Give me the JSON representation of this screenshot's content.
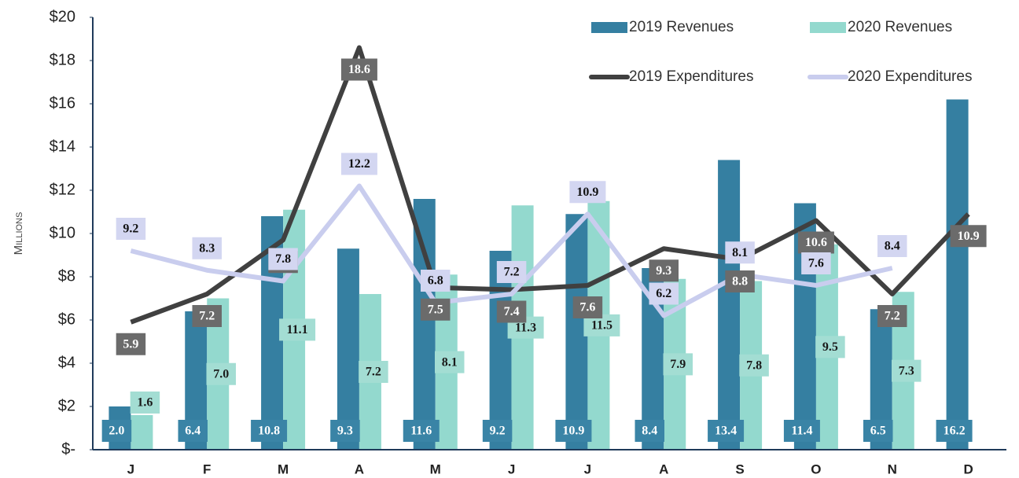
{
  "chart_data": {
    "type": "bar",
    "y_label": "Millions",
    "categories": [
      "J",
      "F",
      "M",
      "A",
      "M",
      "J",
      "J",
      "A",
      "S",
      "O",
      "N",
      "D"
    ],
    "series": [
      {
        "name": "2019 Revenues",
        "type": "bar",
        "color": "#357fa1",
        "label_bg": "#3a84a6",
        "label_color": "#ffffff",
        "values": [
          2.0,
          6.4,
          10.8,
          9.3,
          11.6,
          9.2,
          10.9,
          8.4,
          13.4,
          11.4,
          6.5,
          16.2
        ],
        "value_labels": [
          "2.0",
          "6.4",
          "10.8",
          "9.3",
          "11.6",
          "9.2",
          "10.9",
          "8.4",
          "13.4",
          "11.4",
          "6.5",
          "16.2"
        ]
      },
      {
        "name": "2020 Revenues",
        "type": "bar",
        "color": "#93d9ce",
        "label_bg": "#a3ddd3",
        "label_color": "#1a1a1a",
        "values": [
          1.6,
          7.0,
          11.1,
          7.2,
          8.1,
          11.3,
          11.5,
          7.9,
          7.8,
          9.5,
          7.3,
          null
        ],
        "value_labels": [
          "1.6",
          "7.0",
          "11.1",
          "7.2",
          "8.1",
          "11.3",
          "11.5",
          "7.9",
          "7.8",
          "9.5",
          "7.3",
          null
        ]
      },
      {
        "name": "2019 Expenditures",
        "type": "line",
        "color": "#404040",
        "label_bg": "#6b6b6b",
        "label_color": "#ffffff",
        "values": [
          5.9,
          7.2,
          9.7,
          18.6,
          7.5,
          7.4,
          7.6,
          9.3,
          8.8,
          10.6,
          7.2,
          10.9
        ],
        "value_labels": [
          "5.9",
          "7.2",
          "9.7",
          "18.6",
          "7.5",
          "7.4",
          "7.6",
          "9.3",
          "8.8",
          "10.6",
          "7.2",
          "10.9"
        ]
      },
      {
        "name": "2020 Expenditures",
        "type": "line",
        "color": "#c9cdee",
        "label_bg": "#d3d6f1",
        "label_color": "#111111",
        "values": [
          9.2,
          8.3,
          7.8,
          12.2,
          6.8,
          7.2,
          10.9,
          6.2,
          8.1,
          7.6,
          8.4,
          null
        ],
        "value_labels": [
          "9.2",
          "8.3",
          "7.8",
          "12.2",
          "6.8",
          "7.2",
          "10.9",
          "6.2",
          "8.1",
          "7.6",
          "8.4",
          null
        ]
      }
    ],
    "ylim": [
      0,
      20
    ],
    "yticks": [
      {
        "value": 0,
        "label": "$-"
      },
      {
        "value": 2,
        "label": "$2"
      },
      {
        "value": 4,
        "label": "$4"
      },
      {
        "value": 6,
        "label": "$6"
      },
      {
        "value": 8,
        "label": "$8"
      },
      {
        "value": 10,
        "label": "$10"
      },
      {
        "value": 12,
        "label": "$12"
      },
      {
        "value": 14,
        "label": "$14"
      },
      {
        "value": 16,
        "label": "$16"
      },
      {
        "value": 18,
        "label": "$18"
      },
      {
        "value": 20,
        "label": "$20"
      }
    ],
    "grid": false,
    "legend": "upper right"
  }
}
